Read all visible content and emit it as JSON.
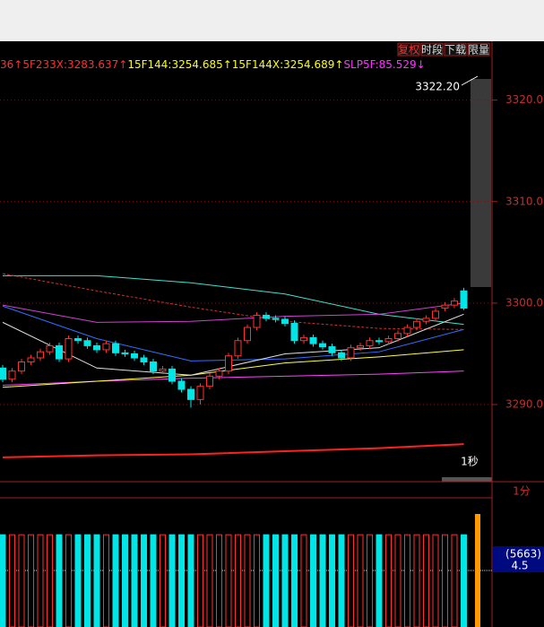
{
  "toolbar": {
    "buttons": [
      "复权",
      "时段",
      "下载",
      "限量"
    ]
  },
  "indicator_header": [
    {
      "text": "36↑5F233X:3283.637↑",
      "color": "#ff3030"
    },
    {
      "text": "15F144:3254.685↑15F144X:3254.689↑",
      "color": "#ffff00"
    },
    {
      "text": "SLP5F:85.529↓",
      "color": "#ff33ff"
    }
  ],
  "chart_data": [
    {
      "type": "candlestick",
      "up_color": "#ff3030",
      "down_color": "#00e5e5",
      "ohlc": [
        [
          3293.6,
          3293.9,
          3292.2,
          3292.5
        ],
        [
          3292.5,
          3293.6,
          3292.2,
          3293.3
        ],
        [
          3293.3,
          3294.5,
          3293.0,
          3294.2
        ],
        [
          3294.2,
          3294.9,
          3293.9,
          3294.6
        ],
        [
          3294.6,
          3295.5,
          3294.3,
          3295.2
        ],
        [
          3295.2,
          3296.1,
          3294.9,
          3295.8
        ],
        [
          3295.8,
          3296.1,
          3294.2,
          3294.5
        ],
        [
          3294.5,
          3296.8,
          3294.2,
          3296.5
        ],
        [
          3296.5,
          3296.8,
          3296.0,
          3296.3
        ],
        [
          3296.3,
          3296.6,
          3295.5,
          3295.8
        ],
        [
          3295.8,
          3296.1,
          3295.1,
          3295.4
        ],
        [
          3295.4,
          3296.3,
          3295.1,
          3296.0
        ],
        [
          3296.0,
          3296.3,
          3294.8,
          3295.1
        ],
        [
          3295.1,
          3295.4,
          3294.7,
          3295.0
        ],
        [
          3295.0,
          3295.3,
          3294.3,
          3294.6
        ],
        [
          3294.6,
          3294.9,
          3293.9,
          3294.2
        ],
        [
          3294.2,
          3294.5,
          3293.0,
          3293.3
        ],
        [
          3293.3,
          3293.8,
          3293.0,
          3293.5
        ],
        [
          3293.5,
          3293.8,
          3292.0,
          3292.3
        ],
        [
          3292.3,
          3292.6,
          3291.2,
          3291.5
        ],
        [
          3291.5,
          3291.8,
          3289.7,
          3290.5
        ],
        [
          3290.5,
          3292.1,
          3290.0,
          3291.8
        ],
        [
          3291.8,
          3293.1,
          3291.5,
          3292.8
        ],
        [
          3292.8,
          3293.6,
          3292.5,
          3293.3
        ],
        [
          3293.3,
          3295.1,
          3293.0,
          3294.8
        ],
        [
          3294.8,
          3296.6,
          3294.5,
          3296.3
        ],
        [
          3296.3,
          3297.9,
          3296.0,
          3297.6
        ],
        [
          3297.6,
          3299.1,
          3297.3,
          3298.8
        ],
        [
          3298.8,
          3299.1,
          3298.2,
          3298.5
        ],
        [
          3298.5,
          3298.8,
          3298.1,
          3298.4
        ],
        [
          3298.4,
          3298.7,
          3297.7,
          3298.0
        ],
        [
          3298.0,
          3298.3,
          3296.0,
          3296.3
        ],
        [
          3296.3,
          3296.9,
          3296.0,
          3296.6
        ],
        [
          3296.6,
          3296.9,
          3295.7,
          3296.0
        ],
        [
          3296.0,
          3296.3,
          3295.4,
          3295.7
        ],
        [
          3295.7,
          3296.0,
          3294.8,
          3295.1
        ],
        [
          3295.1,
          3295.4,
          3294.3,
          3294.6
        ],
        [
          3294.6,
          3295.9,
          3294.3,
          3295.6
        ],
        [
          3295.6,
          3296.1,
          3295.3,
          3295.8
        ],
        [
          3295.8,
          3296.6,
          3295.5,
          3296.3
        ],
        [
          3296.3,
          3296.6,
          3295.9,
          3296.2
        ],
        [
          3296.2,
          3296.8,
          3295.9,
          3296.5
        ],
        [
          3296.5,
          3297.3,
          3296.2,
          3297.0
        ],
        [
          3297.0,
          3297.9,
          3296.7,
          3297.6
        ],
        [
          3297.6,
          3298.5,
          3297.3,
          3298.2
        ],
        [
          3298.2,
          3298.8,
          3297.9,
          3298.5
        ],
        [
          3298.5,
          3299.5,
          3298.2,
          3299.2
        ],
        [
          3299.5,
          3300.1,
          3299.2,
          3299.8
        ],
        [
          3299.8,
          3300.5,
          3299.5,
          3300.2
        ],
        [
          3301.2,
          3301.5,
          3299.3,
          3299.5
        ]
      ],
      "ylim": [
        3282.4,
        3325.8
      ],
      "yticks": [
        {
          "value": 3290,
          "label": "3290.0"
        },
        {
          "value": 3300,
          "label": "3300.0"
        },
        {
          "value": 3310,
          "label": "3310.0"
        },
        {
          "value": 3320,
          "label": "3320.0"
        }
      ],
      "price_label": "3322.20",
      "interval_label": "1秒",
      "line_x": [
        0,
        10,
        20,
        30,
        40,
        49
      ],
      "lines": [
        {
          "color": "#40e0d0",
          "values": [
            3302.7,
            3302.7,
            3302.0,
            3300.9,
            3298.9,
            3297.9
          ]
        },
        {
          "color": "#d03030",
          "dashed": true,
          "values": [
            3302.9,
            3301.2,
            3299.6,
            3298.2,
            3297.5,
            3297.4
          ]
        },
        {
          "color": "#d040d0",
          "values": [
            3299.8,
            3298.1,
            3298.2,
            3298.7,
            3298.9,
            3300.0
          ]
        },
        {
          "color": "#ff40ff",
          "values": [
            3291.9,
            3292.3,
            3292.6,
            3292.8,
            3293.0,
            3293.3
          ]
        },
        {
          "color": "#ffff40",
          "values": [
            3291.7,
            3292.3,
            3292.9,
            3294.1,
            3294.7,
            3295.4
          ]
        },
        {
          "color": "#3070ff",
          "values": [
            3299.7,
            3296.5,
            3294.3,
            3294.5,
            3295.2,
            3297.4
          ]
        },
        {
          "color": "#ff2020",
          "values": [
            3284.8,
            3285.0,
            3285.1,
            3285.4,
            3285.7,
            3286.1
          ]
        },
        {
          "color": "#e0e0e0",
          "values": [
            3298.1,
            3293.6,
            3292.9,
            3295.0,
            3295.6,
            3298.9
          ]
        }
      ]
    },
    {
      "type": "bar",
      "interval_label": "1分",
      "volume_label": "(5663)",
      "ratio_label": "4.5",
      "ylim": [
        0,
        7000
      ],
      "values": [
        5000,
        5000,
        5000,
        5000,
        5000,
        5000,
        5000,
        5000,
        5000,
        5000,
        5000,
        5000,
        5000,
        5000,
        5000,
        5000,
        5000,
        5000,
        5000,
        5000,
        5000,
        5000,
        5000,
        5000,
        5000,
        5000,
        5000,
        5000,
        5000,
        5000,
        5000,
        5000,
        5000,
        5000,
        5000,
        5000,
        5000,
        5000,
        5000,
        5000,
        5000,
        5000,
        5000,
        5000,
        5000,
        5000,
        5000,
        5000,
        5000,
        5000
      ]
    }
  ]
}
